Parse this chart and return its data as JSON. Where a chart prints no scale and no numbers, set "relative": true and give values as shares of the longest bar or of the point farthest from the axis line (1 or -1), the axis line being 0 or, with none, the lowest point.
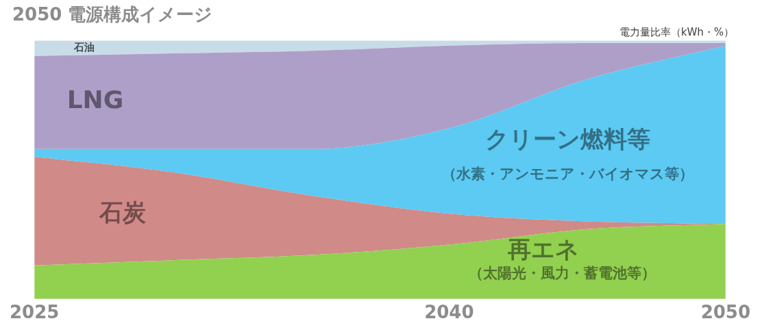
{
  "chart_data": {
    "type": "area",
    "title": "2050 電源構成イメージ",
    "ylabel": "電力量比率（kWh・%）",
    "relative": true,
    "stacked": true,
    "tick_labels": "x",
    "x": [
      2025,
      2030,
      2035,
      2040,
      2045,
      2050
    ],
    "xlim": [
      2025,
      2050
    ],
    "xticks": [
      2025,
      2040,
      2050
    ],
    "series": [
      {
        "name": "再エネ",
        "color": "#92d050",
        "values": [
          0.13,
          0.15,
          0.17,
          0.21,
          0.27,
          0.29
        ]
      },
      {
        "name": "石炭",
        "color": "#d08a88",
        "values": [
          0.42,
          0.34,
          0.23,
          0.12,
          0.03,
          0.0
        ]
      },
      {
        "name": "クリーン燃料等",
        "color": "#5ccaf2",
        "values": [
          0.03,
          0.09,
          0.18,
          0.33,
          0.55,
          0.69
        ]
      },
      {
        "name": "LNG",
        "color": "#ae9fc8",
        "values": [
          0.36,
          0.37,
          0.38,
          0.32,
          0.14,
          0.01
        ]
      },
      {
        "name": "石油",
        "color": "#c8dce8",
        "values": [
          0.06,
          0.05,
          0.04,
          0.02,
          0.01,
          0.01
        ]
      }
    ],
    "annotations": [
      "（水素・アンモニア・バイオマス等）",
      "（太陽光・風力・蓄電池等）"
    ]
  }
}
